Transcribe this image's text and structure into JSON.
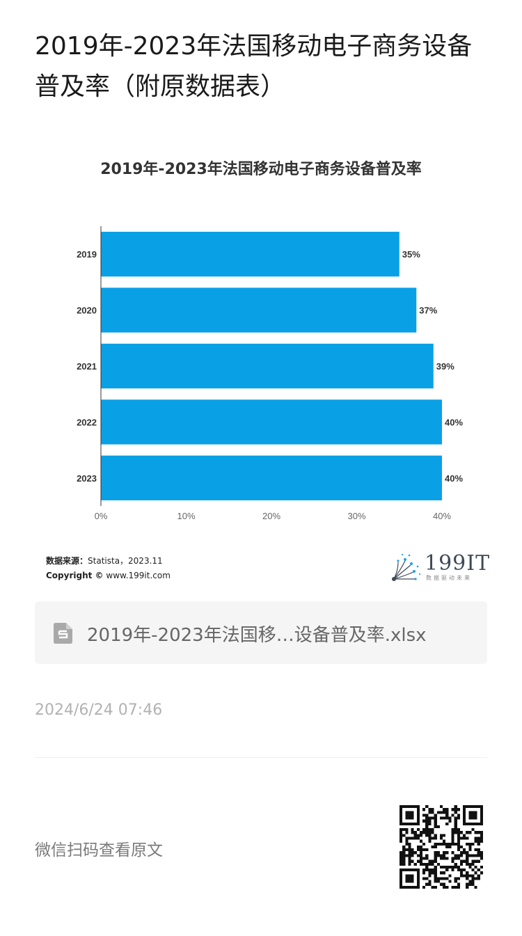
{
  "article": {
    "title": "2019年-2023年法国移动电子商务设备普及率（附原数据表）",
    "timestamp": "2024/6/24 07:46",
    "qr_hint": "微信扫码查看原文"
  },
  "chart_data": {
    "type": "bar",
    "orientation": "horizontal",
    "title": "2019年-2023年法国移动电子商务设备普及率",
    "categories": [
      "2019",
      "2020",
      "2021",
      "2022",
      "2023"
    ],
    "values": [
      35,
      37,
      39,
      40,
      40
    ],
    "value_labels": [
      "35%",
      "37%",
      "39%",
      "40%",
      "40%"
    ],
    "x_ticks": [
      "0%",
      "10%",
      "20%",
      "30%",
      "40%"
    ],
    "xlim": [
      0,
      40
    ],
    "bar_color": "#0aa0e6",
    "grid": false
  },
  "source": {
    "label": "数据来源：",
    "text": "Statista，2023.11",
    "copyright_label": "Copyright ©",
    "copyright_text": "www.199it.com"
  },
  "brand": {
    "logo_text": "199IT",
    "tagline": "数据驱动未来"
  },
  "attachment": {
    "icon": "spreadsheet-file-icon",
    "file_name": "2019年-2023年法国移…设备普及率.xlsx"
  }
}
